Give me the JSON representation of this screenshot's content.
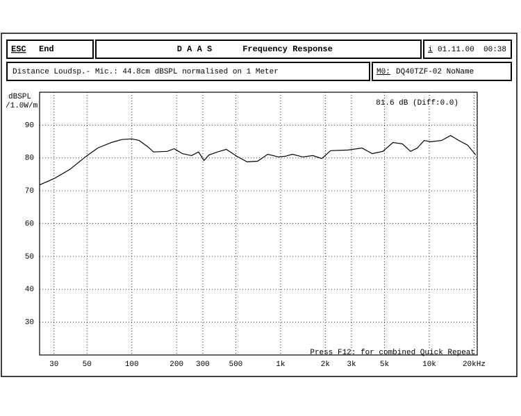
{
  "header": {
    "esc": "ESC",
    "end": "End",
    "app": "D A A S",
    "title": "Frequency Response",
    "info_key": "i",
    "date": "01.11.00",
    "time": "00:38"
  },
  "subheader": {
    "text": "Distance Loudsp.- Mic.: 44.8cm dBSPL normalised on 1 Meter",
    "mem_key": "M0:",
    "mem_name": "DQ40TZF-02 NoName"
  },
  "chart_data": {
    "type": "line",
    "ylabel": [
      "dBSPL",
      "/1.0W/m"
    ],
    "log_x": true,
    "grid": true,
    "color": "#000000",
    "annotations": [
      "81.6 dB (Diff:0.0)",
      "Press F12: for combined Quick Repeat"
    ],
    "x": [
      24.1,
      30,
      38.4,
      48.7,
      59,
      73,
      86,
      100,
      112,
      128,
      140,
      173,
      193,
      219,
      252,
      281,
      306,
      330,
      376,
      432,
      508,
      596,
      700,
      822,
      966,
      1078,
      1200,
      1410,
      1650,
      1890,
      2170,
      2840,
      3530,
      4130,
      4870,
      5700,
      6580,
      7480,
      8300,
      9250,
      10200,
      12100,
      13900,
      15800,
      18100,
      20500
    ],
    "values": [
      71.8,
      73.7,
      76.5,
      80.3,
      83,
      84.7,
      85.6,
      85.8,
      85.3,
      83.4,
      81.8,
      82,
      82.8,
      81.3,
      80.7,
      81.8,
      79.2,
      80.9,
      81.8,
      82.6,
      80.5,
      78.8,
      79,
      81.1,
      80.3,
      80.5,
      81.1,
      80.3,
      80.7,
      79.8,
      82.2,
      82.4,
      83,
      81.3,
      82,
      84.7,
      84.3,
      82,
      83,
      85.3,
      84.9,
      85.3,
      86.8,
      85.3,
      83.9,
      80.9
    ],
    "xlim": [
      24,
      21000
    ],
    "ylim": [
      20,
      100
    ],
    "xticks": [
      30,
      50,
      100,
      200,
      300,
      500,
      {
        "value": 1000,
        "label": "1k"
      },
      {
        "value": 2000,
        "label": "2k"
      },
      {
        "value": 3000,
        "label": "3k"
      },
      {
        "value": 5000,
        "label": "5k"
      },
      {
        "value": 10000,
        "label": "10k"
      },
      {
        "value": 20000,
        "label": "20kHz"
      }
    ],
    "yticks": [
      30,
      40,
      50,
      60,
      70,
      80,
      90
    ]
  }
}
